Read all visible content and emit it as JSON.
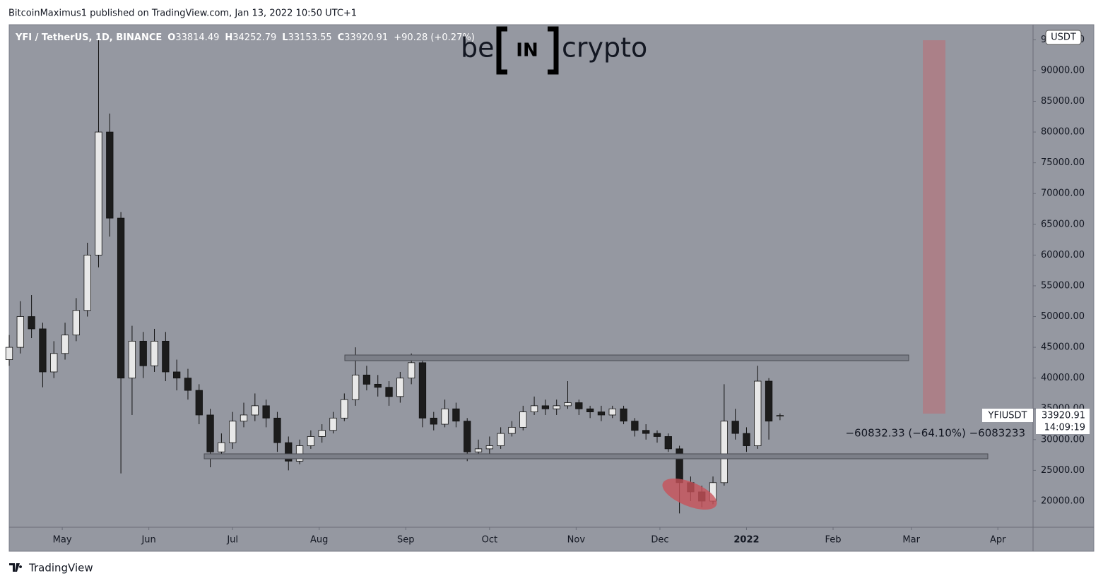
{
  "header": {
    "published": "BitcoinMaximus1 published on TradingView.com, Jan 13, 2022 10:50 UTC+1",
    "symbol": "YFI / TetherUS, 1D, BINANCE",
    "o": "O",
    "h": "H",
    "l": "L",
    "c": "C",
    "change": "+90.28 (+0.27%)"
  },
  "logo": {
    "left": "be",
    "middle": "IN",
    "right": "crypto"
  },
  "axis_unit": "USDT",
  "ticker_label": "YFIUSDT",
  "countdown": "14:09:19",
  "measure": "−60832.33 (−64.10%) −6083233",
  "footer": "TradingView",
  "chart_data": {
    "type": "candlestick",
    "up_color": "#e8e8e8",
    "down_color": "#1c1c1c",
    "wick_color": "#111111",
    "x": [
      -19,
      -15,
      -11,
      -7,
      -3,
      1,
      5,
      9,
      13,
      17,
      21,
      25,
      29,
      33,
      37,
      41,
      45,
      49,
      53,
      57,
      61,
      65,
      69,
      73,
      77,
      81,
      85,
      89,
      93,
      97,
      101,
      105,
      109,
      113,
      117,
      121,
      125,
      129,
      133,
      137,
      141,
      145,
      149,
      153,
      157,
      161,
      165,
      169,
      173,
      177,
      181,
      185,
      189,
      193,
      197,
      201,
      205,
      209,
      213,
      217,
      221,
      225,
      229,
      233,
      237,
      241,
      245,
      249,
      253,
      257
    ],
    "open": [
      43000,
      45000,
      50000,
      48000,
      41000,
      44000,
      47000,
      51000,
      60000,
      80000,
      66000,
      40000,
      46000,
      42000,
      46000,
      41000,
      40000,
      38000,
      34000,
      28000,
      29500,
      33000,
      34000,
      35500,
      33500,
      29500,
      26500,
      29000,
      30500,
      31500,
      33500,
      36500,
      40500,
      39000,
      38500,
      37000,
      40000,
      42500,
      33500,
      32500,
      35000,
      33000,
      28000,
      28500,
      29000,
      31000,
      32000,
      34500,
      35500,
      35000,
      35500,
      36000,
      35000,
      34500,
      34000,
      35000,
      33000,
      31500,
      31000,
      30500,
      28500,
      23000,
      21500,
      20000,
      23000,
      33000,
      31000,
      29000,
      39500,
      33814.49
    ],
    "high": [
      47000,
      52500,
      53500,
      49000,
      46000,
      49000,
      53000,
      62000,
      95000,
      83000,
      67000,
      48500,
      47500,
      48000,
      47500,
      43000,
      41500,
      39000,
      35000,
      31000,
      34500,
      36000,
      37500,
      36500,
      34500,
      30500,
      30000,
      31500,
      32500,
      34500,
      37500,
      45000,
      42000,
      40500,
      39500,
      41000,
      44000,
      43000,
      34500,
      36500,
      36000,
      33500,
      30000,
      30500,
      32000,
      33000,
      35500,
      37000,
      36500,
      36500,
      39500,
      36500,
      35500,
      35500,
      35500,
      35500,
      33500,
      32500,
      31500,
      31000,
      29000,
      24000,
      22500,
      24000,
      39000,
      35000,
      32000,
      42000,
      40000,
      34252.79
    ],
    "low": [
      42000,
      44000,
      46500,
      38500,
      40000,
      43000,
      46000,
      50000,
      58000,
      63000,
      24500,
      34000,
      40000,
      41000,
      39500,
      38000,
      36500,
      32500,
      25500,
      27000,
      28500,
      32000,
      33000,
      32000,
      28000,
      25000,
      26000,
      28500,
      29500,
      31000,
      33000,
      35500,
      38000,
      37000,
      35500,
      36000,
      39000,
      32000,
      31500,
      32000,
      32000,
      26500,
      27000,
      27500,
      28500,
      30500,
      31500,
      34000,
      34000,
      34000,
      35000,
      34000,
      33500,
      33000,
      33500,
      32500,
      30500,
      30000,
      29500,
      28000,
      18000,
      20000,
      19000,
      19500,
      22500,
      30000,
      28000,
      28500,
      30000,
      33153.55
    ],
    "close": [
      45000,
      50000,
      48000,
      41000,
      44000,
      47000,
      51000,
      60000,
      80000,
      66000,
      40000,
      46000,
      42000,
      46000,
      41000,
      40000,
      38000,
      34000,
      28000,
      29500,
      33000,
      34000,
      35500,
      33500,
      29500,
      26500,
      29000,
      30500,
      31500,
      33500,
      36500,
      40500,
      39000,
      38500,
      37000,
      40000,
      42500,
      33500,
      32500,
      35000,
      33000,
      28000,
      28500,
      29000,
      31000,
      32000,
      34500,
      35500,
      35000,
      35500,
      36000,
      35000,
      34500,
      34000,
      35000,
      33000,
      31500,
      31000,
      30500,
      28500,
      23000,
      21500,
      20000,
      23000,
      33000,
      31000,
      29000,
      39500,
      33000,
      33920.91
    ],
    "xlim": [
      -19,
      347.6
    ],
    "xticks": [
      {
        "value": 0,
        "label": "May"
      },
      {
        "value": 31,
        "label": "Jun"
      },
      {
        "value": 61,
        "label": "Jul"
      },
      {
        "value": 92,
        "label": "Aug"
      },
      {
        "value": 123,
        "label": "Sep"
      },
      {
        "value": 153,
        "label": "Oct"
      },
      {
        "value": 184,
        "label": "Nov"
      },
      {
        "value": 214,
        "label": "Dec"
      },
      {
        "value": 245,
        "label": "2022"
      },
      {
        "value": 276,
        "label": "Feb"
      },
      {
        "value": 304,
        "label": "Mar"
      },
      {
        "value": 335,
        "label": "Apr"
      }
    ],
    "ylim": [
      15750,
      97450
    ],
    "yticks": [
      {
        "value": 20000,
        "label": "20000.00"
      },
      {
        "value": 25000,
        "label": "25000.00"
      },
      {
        "value": 30000,
        "label": "30000.00"
      },
      {
        "value": 35000,
        "label": "35000.00"
      },
      {
        "value": 40000,
        "label": "40000.00"
      },
      {
        "value": 45000,
        "label": "45000.00"
      },
      {
        "value": 50000,
        "label": "50000.00"
      },
      {
        "value": 55000,
        "label": "55000.00"
      },
      {
        "value": 60000,
        "label": "60000.00"
      },
      {
        "value": 65000,
        "label": "65000.00"
      },
      {
        "value": 70000,
        "label": "70000.00"
      },
      {
        "value": 75000,
        "label": "75000.00"
      },
      {
        "value": 80000,
        "label": "80000.00"
      },
      {
        "value": 85000,
        "label": "85000.00"
      },
      {
        "value": 90000,
        "label": "90000.00"
      },
      {
        "value": 95000,
        "label": "95000.00"
      }
    ],
    "grid": false
  }
}
